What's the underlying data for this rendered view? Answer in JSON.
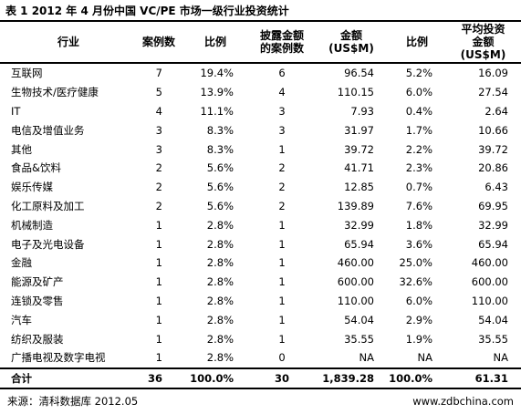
{
  "title": "表 1 2012 年 4 月份中国 VC/PE 市场一级行业投资统计",
  "headers": [
    "行业",
    "案例数",
    "比例",
    "披露金额的案例数",
    "金额(US$M)",
    "比例",
    "平均投资金额(US$M)"
  ],
  "header_lines": [
    [
      "行业"
    ],
    [
      "案例数"
    ],
    [
      "比例"
    ],
    [
      "披露金额",
      "的案例数"
    ],
    [
      "金额",
      "(US$M)"
    ],
    [
      "比例"
    ],
    [
      "平均投资",
      "金额",
      "(US$M)"
    ]
  ],
  "rows": [
    [
      "互联网",
      "7",
      "19.4%",
      "6",
      "96.54",
      "5.2%",
      "16.09"
    ],
    [
      "生物技术/医疗健康",
      "5",
      "13.9%",
      "4",
      "110.15",
      "6.0%",
      "27.54"
    ],
    [
      "IT",
      "4",
      "11.1%",
      "3",
      "7.93",
      "0.4%",
      "2.64"
    ],
    [
      "电信及增值业务",
      "3",
      "8.3%",
      "3",
      "31.97",
      "1.7%",
      "10.66"
    ],
    [
      "其他",
      "3",
      "8.3%",
      "1",
      "39.72",
      "2.2%",
      "39.72"
    ],
    [
      "食品&饮料",
      "2",
      "5.6%",
      "2",
      "41.71",
      "2.3%",
      "20.86"
    ],
    [
      "娱乐传媒",
      "2",
      "5.6%",
      "2",
      "12.85",
      "0.7%",
      "6.43"
    ],
    [
      "化工原料及加工",
      "2",
      "5.6%",
      "2",
      "139.89",
      "7.6%",
      "69.95"
    ],
    [
      "机械制造",
      "1",
      "2.8%",
      "1",
      "32.99",
      "1.8%",
      "32.99"
    ],
    [
      "电子及光电设备",
      "1",
      "2.8%",
      "1",
      "65.94",
      "3.6%",
      "65.94"
    ],
    [
      "金融",
      "1",
      "2.8%",
      "1",
      "460.00",
      "25.0%",
      "460.00"
    ],
    [
      "能源及矿产",
      "1",
      "2.8%",
      "1",
      "600.00",
      "32.6%",
      "600.00"
    ],
    [
      "连锁及零售",
      "1",
      "2.8%",
      "1",
      "110.00",
      "6.0%",
      "110.00"
    ],
    [
      "汽车",
      "1",
      "2.8%",
      "1",
      "54.04",
      "2.9%",
      "54.04"
    ],
    [
      "纺织及服装",
      "1",
      "2.8%",
      "1",
      "35.55",
      "1.9%",
      "35.55"
    ],
    [
      "广播电视及数字电视",
      "1",
      "2.8%",
      "0",
      "NA",
      "NA",
      "NA"
    ]
  ],
  "total": [
    "合计",
    "36",
    "100.0%",
    "30",
    "1,839.28",
    "100.0%",
    "61.31"
  ],
  "footer": {
    "source": "来源：清科数据库 2012.05",
    "site": "www.zdbchina.com"
  }
}
